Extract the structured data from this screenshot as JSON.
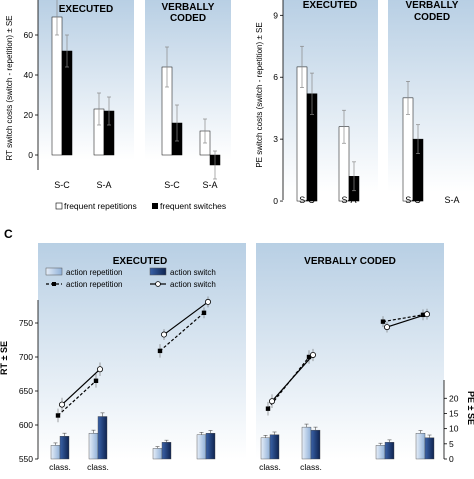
{
  "panel_c_letter": "C",
  "legend_top": {
    "rep": "frequent repetitions",
    "sw": "frequent switches"
  },
  "legend_c": {
    "bar_rep": "action repetition",
    "bar_sw": "action switch",
    "line_rep": "action repetition",
    "line_sw": "action switch"
  },
  "colors": {
    "panel_bg_top": "#b8cfe4",
    "panel_bg_bottom": "#ffffff",
    "bar_rep": "#ffffff",
    "bar_sw": "#000000",
    "bar_c_light": "#b5cce6",
    "bar_c_dark": "#1e3c78",
    "line": "#000000"
  },
  "chart_data": [
    {
      "type": "bar",
      "ylabel": "RT switch costs (switch - repetition) ± SE",
      "ylim": [
        -20,
        80
      ],
      "yticks": [
        "0",
        "20",
        "40",
        "60"
      ],
      "panels": [
        {
          "title": "EXECUTED",
          "categories": [
            "S-C",
            "S-A"
          ]
        },
        {
          "title": "VERBALLY CODED",
          "categories": [
            "S-C",
            "S-A"
          ]
        }
      ],
      "series": [
        {
          "name": "frequent repetitions",
          "values": [
            69,
            23,
            44,
            12
          ],
          "errors": [
            9,
            8,
            10,
            6
          ]
        },
        {
          "name": "frequent switches",
          "values": [
            52,
            22,
            16,
            -5
          ],
          "errors": [
            8,
            7,
            9,
            7
          ]
        }
      ],
      "grid": false
    },
    {
      "type": "bar",
      "ylabel": "PE switch costs (switch - repetition) ± SE",
      "ylim": [
        -1.5,
        9.5
      ],
      "yticks": [
        "0",
        "3",
        "6",
        "9"
      ],
      "panels": [
        {
          "title": "EXECUTED",
          "categories": [
            "S-C",
            "S-A"
          ]
        },
        {
          "title": "VERBALLY CODED",
          "categories": [
            "S-C",
            "S-A"
          ]
        }
      ],
      "series": [
        {
          "name": "frequent repetitions",
          "values": [
            6.5,
            3.6,
            5.0,
            0
          ],
          "errors": [
            1.0,
            0.8,
            0.8,
            0
          ]
        },
        {
          "name": "frequent switches",
          "values": [
            5.2,
            1.2,
            3.0,
            0
          ],
          "errors": [
            1.0,
            0.7,
            0.7,
            0
          ]
        }
      ],
      "grid": false
    },
    {
      "type": "bar+line",
      "ylabel_left": "RT ± SE",
      "ylabel_right": "PE ± SE",
      "ylim_rt": [
        550,
        800
      ],
      "yticks_rt": [
        "550",
        "600",
        "650",
        "700",
        "750"
      ],
      "ylim_pe": [
        0,
        28
      ],
      "yticks_pe": [
        "0",
        "5",
        "10",
        "15",
        "20"
      ],
      "panels": [
        {
          "title": "EXECUTED",
          "categories": [
            "class.",
            "class.",
            "",
            ""
          ]
        },
        {
          "title": "VERBALLY CODED",
          "categories": [
            "class.",
            "class.",
            "",
            ""
          ]
        }
      ],
      "pe_series": [
        {
          "name": "action repetition",
          "values": [
            4.5,
            8.5,
            3.5,
            8.0,
            7.0,
            10.5,
            4.5,
            8.5
          ],
          "errors": [
            0.8,
            1.0,
            0.6,
            0.8,
            0.8,
            1.0,
            0.7,
            0.9
          ]
        },
        {
          "name": "action switch",
          "values": [
            7.5,
            14.0,
            5.5,
            8.5,
            8.0,
            9.5,
            5.5,
            7.0
          ],
          "errors": [
            1.0,
            1.2,
            0.7,
            0.9,
            0.9,
            1.0,
            0.8,
            0.9
          ]
        }
      ],
      "rt_series": [
        {
          "name": "action repetition",
          "values": [
            614,
            665,
            709,
            765,
            624,
            700,
            752,
            762
          ],
          "errors": [
            10,
            10,
            10,
            8,
            10,
            10,
            8,
            8
          ]
        },
        {
          "name": "action switch",
          "values": [
            630,
            682,
            733,
            781,
            635,
            703,
            744,
            763
          ],
          "errors": [
            10,
            10,
            8,
            8,
            10,
            9,
            8,
            8
          ]
        }
      ]
    }
  ]
}
